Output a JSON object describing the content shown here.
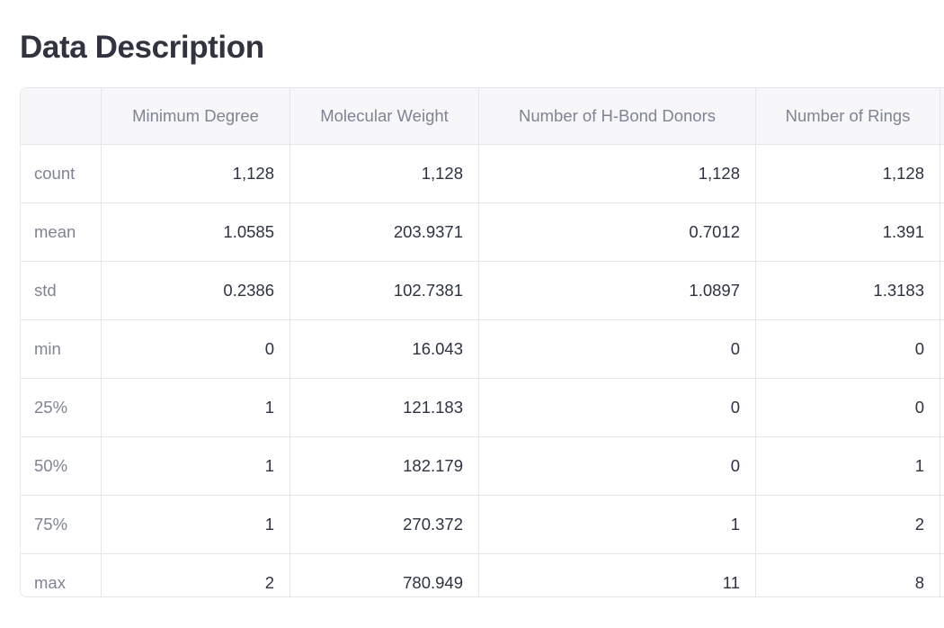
{
  "page": {
    "title": "Data Description"
  },
  "table": {
    "index_header": "",
    "columns": [
      "Minimum Degree",
      "Molecular Weight",
      "Number of H-Bond Donors",
      "Number of Rings"
    ],
    "rows": [
      {
        "label": "count",
        "values": [
          "1,128",
          "1,128",
          "1,128",
          "1,128"
        ]
      },
      {
        "label": "mean",
        "values": [
          "1.0585",
          "203.9371",
          "0.7012",
          "1.391"
        ]
      },
      {
        "label": "std",
        "values": [
          "0.2386",
          "102.7381",
          "1.0897",
          "1.3183"
        ]
      },
      {
        "label": "min",
        "values": [
          "0",
          "16.043",
          "0",
          "0"
        ]
      },
      {
        "label": "25%",
        "values": [
          "1",
          "121.183",
          "0",
          "0"
        ]
      },
      {
        "label": "50%",
        "values": [
          "1",
          "182.179",
          "0",
          "1"
        ]
      },
      {
        "label": "75%",
        "values": [
          "1",
          "270.372",
          "1",
          "2"
        ]
      },
      {
        "label": "max",
        "values": [
          "2",
          "780.949",
          "11",
          "8"
        ]
      }
    ]
  },
  "colors": {
    "title_text": "#31333F",
    "header_background": "#f7f7f9",
    "muted_text": "#7f8493",
    "value_text": "#2e3342",
    "grid_border": "#e7e7ea",
    "page_background": "#ffffff"
  }
}
